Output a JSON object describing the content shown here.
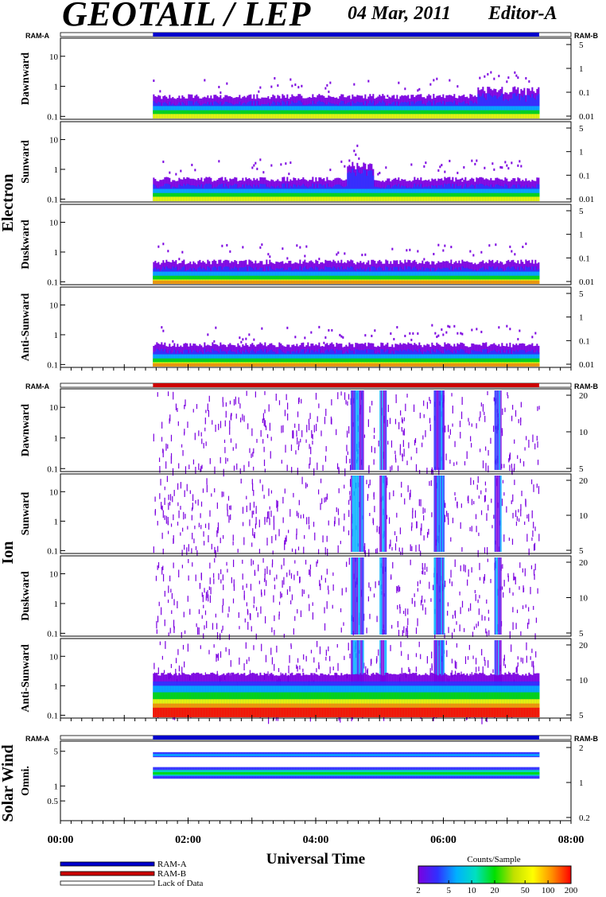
{
  "header": {
    "title": "GEOTAIL / LEP",
    "date": "04 Mar, 2011",
    "editor": "Editor-A"
  },
  "colors": {
    "ram_a": "#0000cc",
    "ram_b": "#cc0000",
    "scale": [
      "#7b00e0",
      "#3030ff",
      "#00b0ff",
      "#00e0c0",
      "#00e000",
      "#c0e000",
      "#ffff00",
      "#ff9000",
      "#ff0000"
    ]
  },
  "chart_data": {
    "type": "heatmap",
    "xlabel": "Universal Time",
    "x_ticks": [
      "00:00",
      "02:00",
      "04:00",
      "06:00",
      "08:00"
    ],
    "x_range_hours": [
      0,
      8
    ],
    "data_span_hours": [
      1.45,
      7.5
    ],
    "groups": [
      {
        "name": "Electron",
        "ram_left": "RAM-A",
        "ram_right": "RAM-B",
        "ram_bar": "ram_a",
        "panels": [
          {
            "name": "Dawnward",
            "left_ticks": [
              "0.1",
              "1",
              "10"
            ],
            "right_ticks": [
              "0.01",
              "0.1",
              "1",
              "5"
            ]
          },
          {
            "name": "Sunward",
            "left_ticks": [
              "0.1",
              "1",
              "10"
            ],
            "right_ticks": [
              "0.01",
              "0.1",
              "1",
              "5"
            ]
          },
          {
            "name": "Duskward",
            "left_ticks": [
              "0.1",
              "1",
              "10"
            ],
            "right_ticks": [
              "0.01",
              "0.1",
              "1",
              "5"
            ]
          },
          {
            "name": "Anti-Sunward",
            "left_ticks": [
              "0.1",
              "1",
              "10"
            ],
            "right_ticks": [
              "0.01",
              "0.1",
              "1",
              "5"
            ]
          }
        ]
      },
      {
        "name": "Ion",
        "ram_left": "RAM-A",
        "ram_right": "RAM-B",
        "ram_bar": "ram_b",
        "panels": [
          {
            "name": "Dawnward",
            "left_ticks": [
              "0.1",
              "1",
              "10"
            ],
            "right_ticks": [
              "5",
              "10",
              "20"
            ]
          },
          {
            "name": "Sunward",
            "left_ticks": [
              "0.1",
              "1",
              "10"
            ],
            "right_ticks": [
              "5",
              "10",
              "20"
            ]
          },
          {
            "name": "Duskward",
            "left_ticks": [
              "0.1",
              "1",
              "10"
            ],
            "right_ticks": [
              "5",
              "10",
              "20"
            ]
          },
          {
            "name": "Anti-Sunward",
            "left_ticks": [
              "0.1",
              "1",
              "10"
            ],
            "right_ticks": [
              "5",
              "10",
              "20"
            ]
          }
        ]
      },
      {
        "name": "Solar Wind",
        "ram_left": "RAM-A",
        "ram_right": "RAM-B",
        "ram_bar": "ram_a",
        "panels": [
          {
            "name": "Omni.",
            "left_ticks": [
              "0.5",
              "1",
              "5"
            ],
            "right_ticks": [
              "0.2",
              "1",
              "2"
            ]
          }
        ]
      }
    ],
    "legend": {
      "items": [
        {
          "label": "RAM-A",
          "color": "#0000cc"
        },
        {
          "label": "RAM-B",
          "color": "#cc0000"
        },
        {
          "label": "Lack of Data",
          "color": "#ffffff"
        }
      ],
      "colorbar_title": "Counts/Sample",
      "colorbar_ticks": [
        "2",
        "5",
        "10",
        "20",
        "50",
        "100",
        "200"
      ],
      "colorbar_scale": "log"
    }
  }
}
